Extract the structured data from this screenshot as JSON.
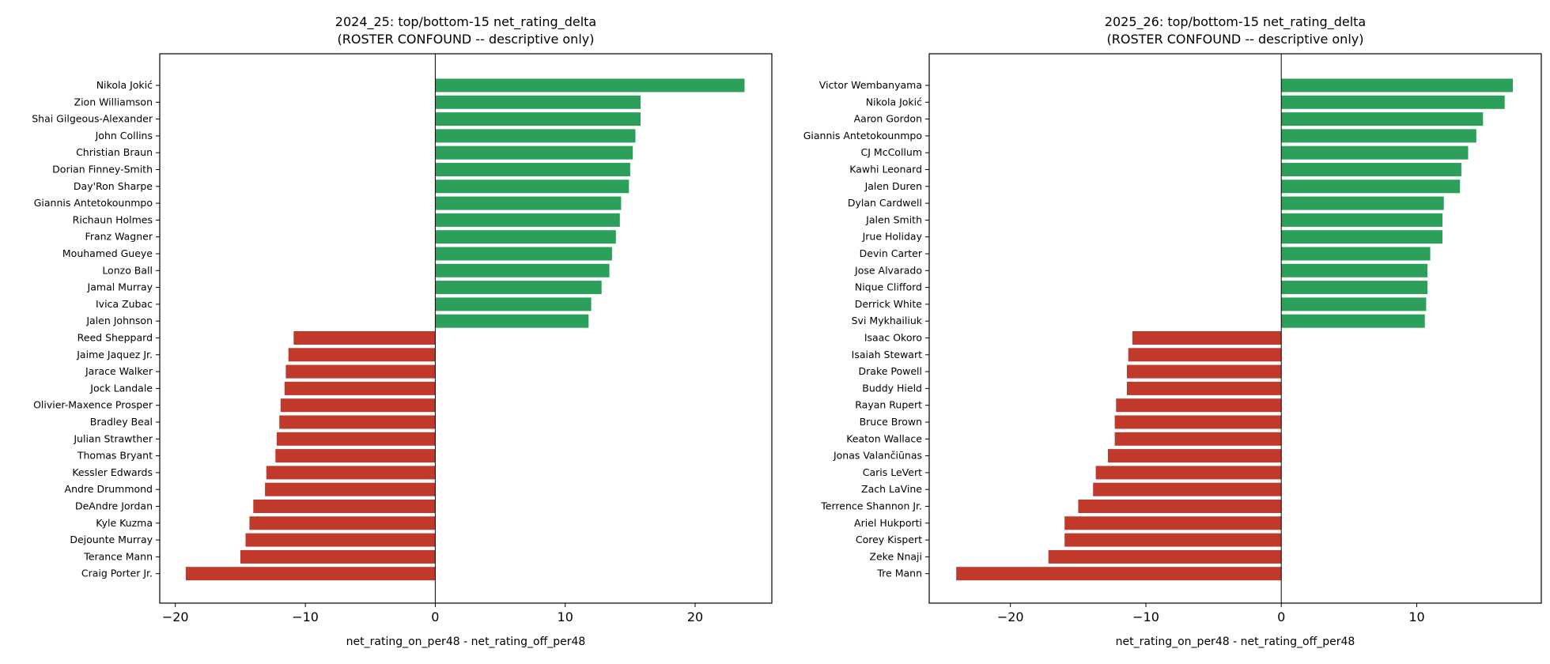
{
  "chart_data": [
    {
      "type": "bar",
      "orientation": "horizontal",
      "title": "2024_25: top/bottom-15 net_rating_delta",
      "subtitle": "(ROSTER CONFOUND -- descriptive only)",
      "xlabel": "net_rating_on_per48 - net_rating_off_per48",
      "ylabel": "",
      "xlim": [
        -21.2,
        25.9
      ],
      "xticks": [
        -20,
        -10,
        0,
        10,
        20
      ],
      "xtick_labels": [
        "−20",
        "−10",
        "0",
        "10",
        "20"
      ],
      "grid": false,
      "zero_line": true,
      "categories": [
        "Nikola Jokić",
        "Zion Williamson",
        "Shai Gilgeous-Alexander",
        "John Collins",
        "Christian Braun",
        "Dorian Finney-Smith",
        "Day'Ron Sharpe",
        "Giannis Antetokounmpo",
        "Richaun Holmes",
        "Franz Wagner",
        "Mouhamed Gueye",
        "Lonzo Ball",
        "Jamal Murray",
        "Ivica Zubac",
        "Jalen Johnson",
        "Reed Sheppard",
        "Jaime Jaquez Jr.",
        "Jarace Walker",
        "Jock Landale",
        "Olivier-Maxence Prosper",
        "Bradley Beal",
        "Julian Strawther",
        "Thomas Bryant",
        "Kessler Edwards",
        "Andre Drummond",
        "DeAndre Jordan",
        "Kyle Kuzma",
        "Dejounte Murray",
        "Terance Mann",
        "Craig Porter Jr."
      ],
      "values": [
        23.8,
        15.8,
        15.8,
        15.4,
        15.2,
        15.0,
        14.9,
        14.3,
        14.2,
        13.9,
        13.6,
        13.4,
        12.8,
        12.0,
        11.8,
        -10.9,
        -11.3,
        -11.5,
        -11.6,
        -11.9,
        -12.0,
        -12.2,
        -12.3,
        -13.0,
        -13.1,
        -14.0,
        -14.3,
        -14.6,
        -15.0,
        -19.2
      ]
    },
    {
      "type": "bar",
      "orientation": "horizontal",
      "title": "2025_26: top/bottom-15 net_rating_delta",
      "subtitle": "(ROSTER CONFOUND -- descriptive only)",
      "xlabel": "net_rating_on_per48 - net_rating_off_per48",
      "ylabel": "",
      "xlim": [
        -26.0,
        19.2
      ],
      "xticks": [
        -20,
        -10,
        0,
        10
      ],
      "xtick_labels": [
        "−20",
        "−10",
        "0",
        "10"
      ],
      "grid": false,
      "zero_line": true,
      "categories": [
        "Victor Wembanyama",
        "Nikola Jokić",
        "Aaron Gordon",
        "Giannis Antetokounmpo",
        "CJ McCollum",
        "Kawhi Leonard",
        "Jalen Duren",
        "Dylan Cardwell",
        "Jalen Smith",
        "Jrue Holiday",
        "Devin Carter",
        "Jose Alvarado",
        "Nique Clifford",
        "Derrick White",
        "Svi Mykhailiuk",
        "Isaac Okoro",
        "Isaiah Stewart",
        "Drake Powell",
        "Buddy Hield",
        "Rayan Rupert",
        "Bruce Brown",
        "Keaton Wallace",
        "Jonas Valančiūnas",
        "Caris LeVert",
        "Zach LaVine",
        "Terrence Shannon Jr.",
        "Ariel Hukporti",
        "Corey Kispert",
        "Zeke Nnaji",
        "Tre Mann"
      ],
      "values": [
        17.1,
        16.5,
        14.9,
        14.4,
        13.8,
        13.3,
        13.2,
        12.0,
        11.9,
        11.9,
        11.0,
        10.8,
        10.8,
        10.7,
        10.6,
        -11.0,
        -11.3,
        -11.4,
        -11.4,
        -12.2,
        -12.3,
        -12.3,
        -12.8,
        -13.7,
        -13.9,
        -15.0,
        -16.0,
        -16.0,
        -17.2,
        -24.0
      ]
    }
  ],
  "colors": {
    "positive": "#2ca05a",
    "negative": "#c0392b",
    "axis": "#000000",
    "background": "#ffffff"
  }
}
